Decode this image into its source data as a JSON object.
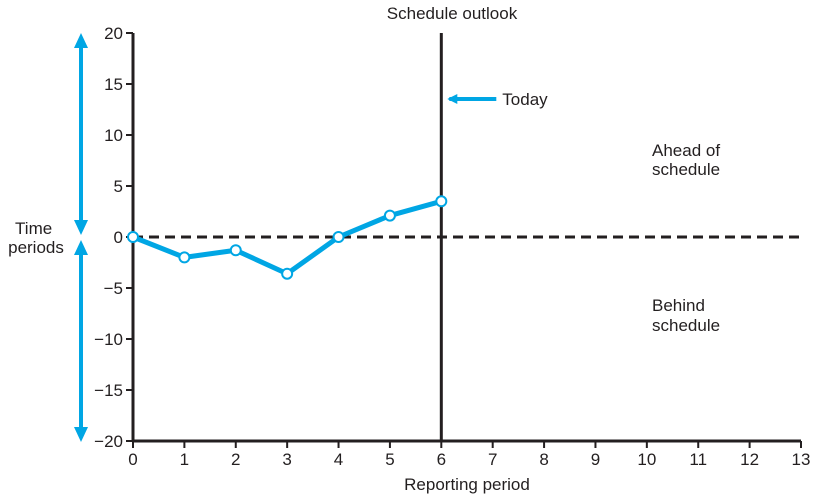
{
  "chart_data": {
    "type": "line",
    "title": "Schedule outlook",
    "xlabel": "Reporting period",
    "ylabel": "Time periods",
    "x_ticks": [
      0,
      1,
      2,
      3,
      4,
      5,
      6,
      7,
      8,
      9,
      10,
      11,
      12,
      13
    ],
    "y_ticks": [
      20,
      15,
      10,
      5,
      0,
      -5,
      -10,
      -15,
      -20
    ],
    "y_tick_labels": [
      "20",
      "15",
      "10",
      "5",
      "0",
      "−5",
      "−10",
      "−15",
      "−20"
    ],
    "xlim": [
      0,
      13
    ],
    "ylim": [
      -20,
      20
    ],
    "grid": false,
    "series": [
      {
        "x": [
          0,
          1,
          2,
          3,
          4,
          5,
          6
        ],
        "y": [
          0,
          -2,
          -1.3,
          -3.6,
          0,
          2.1,
          3.5
        ]
      }
    ],
    "zero_line": {
      "y": 0,
      "style": "dashed"
    },
    "today_line": {
      "x": 6,
      "label": "Today"
    },
    "annotations": {
      "ahead": [
        "Ahead of",
        "schedule"
      ],
      "behind": [
        "Behind",
        "schedule"
      ],
      "ylabel_lines": [
        "Time",
        "periods"
      ]
    },
    "colors": {
      "series": "#00a6e4",
      "axis": "#231f20",
      "marker_fill": "#ffffff"
    }
  }
}
